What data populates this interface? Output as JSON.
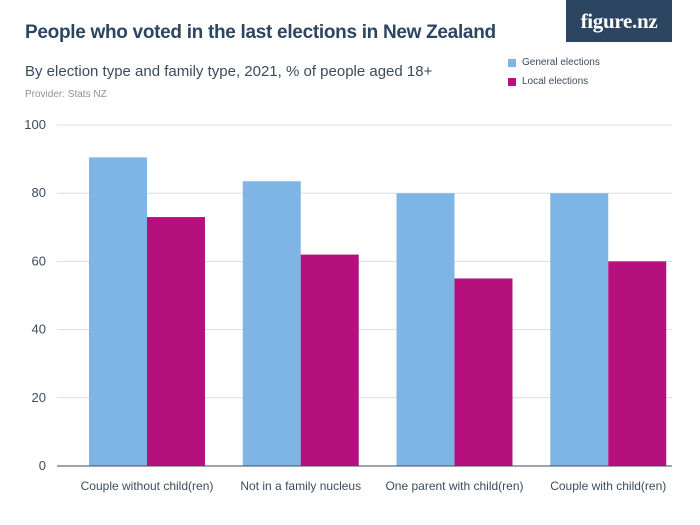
{
  "header": {
    "title": "People who voted in the last elections in New Zealand",
    "subtitle": "By election type and family type, 2021, % of people aged 18+",
    "provider": "Provider: Stats NZ",
    "logo": "figure.nz"
  },
  "colors": {
    "general": "#7eb5e4",
    "local": "#b5107e",
    "grid": "#d9dee4",
    "axis": "#3c4b5c",
    "logo_bg": "#2c4560"
  },
  "chart_data": {
    "type": "bar",
    "title": "People who voted in the last elections in New Zealand",
    "subtitle": "By election type and family type, 2021, % of people aged 18+",
    "xlabel": "",
    "ylabel": "",
    "categories": [
      "Couple without child(ren)",
      "Not in a family nucleus",
      "One parent with child(ren)",
      "Couple with child(ren)"
    ],
    "series": [
      {
        "name": "General elections",
        "values": [
          90.5,
          83.5,
          80.0,
          80.0
        ]
      },
      {
        "name": "Local elections",
        "values": [
          73.0,
          62.0,
          55.0,
          60.0
        ]
      }
    ],
    "ylim": [
      0,
      100
    ],
    "yticks": [
      0,
      20,
      40,
      60,
      80,
      100
    ],
    "grid": true,
    "legend_position": "top-right"
  }
}
